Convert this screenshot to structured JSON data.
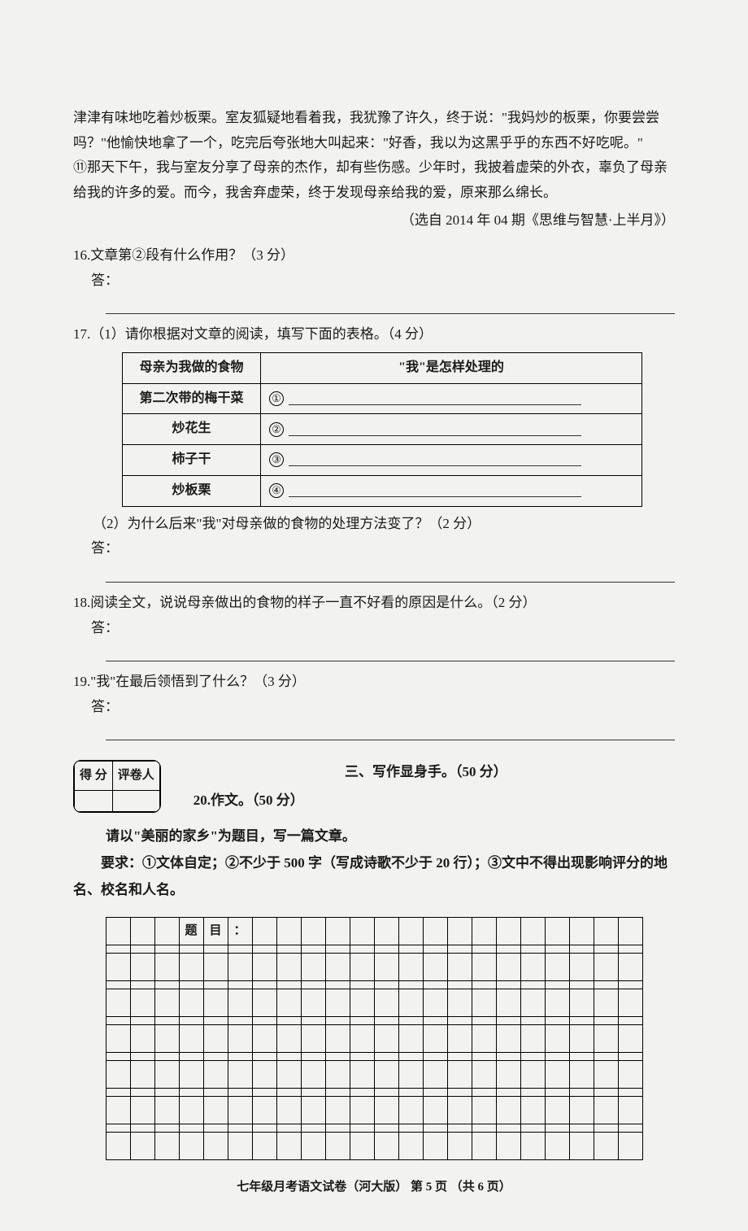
{
  "passage": {
    "line1": "津津有味地吃着炒板栗。室友狐疑地看着我，我犹豫了许久，终于说：\"我妈炒的板栗，你要尝尝吗？\"他愉快地拿了一个，吃完后夸张地大叫起来：\"好香，我以为这黑乎乎的东西不好吃呢。\"",
    "line2": "⑪那天下午，我与室友分享了母亲的杰作，却有些伤感。少年时，我披着虚荣的外衣，辜负了母亲给我的许多的爱。而今，我舍弃虚荣，终于发现母亲给我的爱，原来那么绵长。",
    "source": "（选自 2014 年 04 期《思维与智慧·上半月》）"
  },
  "q16": {
    "text": "16.文章第②段有什么作用？（3 分）",
    "answer_label": "答："
  },
  "q17": {
    "part1": "17.（1）请你根据对文章的阅读，填写下面的表格。（4 分）",
    "table": {
      "header_left": "母亲为我做的食物",
      "header_right": "\"我\"是怎样处理的",
      "rows": [
        {
          "food": "第二次带的梅干菜",
          "num": "①"
        },
        {
          "food": "炒花生",
          "num": "②"
        },
        {
          "food": "柿子干",
          "num": "③"
        },
        {
          "food": "炒板栗",
          "num": "④"
        }
      ]
    },
    "part2": "（2）为什么后来\"我\"对母亲做的食物的处理方法变了？（2 分）",
    "answer_label": "答："
  },
  "q18": {
    "text": "18.阅读全文，说说母亲做出的食物的样子一直不好看的原因是什么。（2 分）",
    "answer_label": "答："
  },
  "q19": {
    "text": "19.\"我\"在最后领悟到了什么？（3 分）",
    "answer_label": "答："
  },
  "section3": {
    "score_labels": {
      "score": "得 分",
      "marker": "评卷人"
    },
    "title": "三、写作显身手。（50 分）",
    "q20": "20.作文。（50 分）",
    "prompt": "请以\"美丽的家乡\"为题目，写一篇文章。",
    "requirements_line1": "要求：①文体自定；②不少于 500 字（写成诗歌不少于 20 行）；③文中不得出现影响评分的地",
    "requirements_line2": "名、校名和人名。"
  },
  "grid": {
    "title_cells": [
      "题",
      "目",
      "："
    ],
    "cols": 22,
    "rows": 7
  },
  "footer": "七年级月考语文试卷（河大版） 第 5 页 （共 6 页）"
}
